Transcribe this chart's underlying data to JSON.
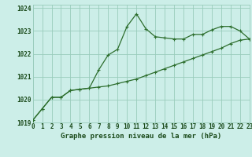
{
  "title": "Graphe pression niveau de la mer (hPa)",
  "background_color": "#cceee8",
  "grid_color": "#99ccbb",
  "line_color": "#2d6e2d",
  "x_min": 0,
  "x_max": 23,
  "y_min": 1019,
  "y_max": 1024,
  "series1_y": [
    1019.1,
    1019.6,
    1020.1,
    1020.1,
    1020.4,
    1020.45,
    1020.5,
    1021.3,
    1021.95,
    1022.2,
    1023.2,
    1023.75,
    1023.1,
    1022.75,
    1022.7,
    1022.65,
    1022.65,
    1022.85,
    1022.85,
    1023.05,
    1023.2,
    1023.2,
    1023.0,
    1022.65
  ],
  "series2_y": [
    1019.1,
    1019.6,
    1020.1,
    1020.1,
    1020.4,
    1020.45,
    1020.5,
    1020.55,
    1020.6,
    1020.7,
    1020.8,
    1020.9,
    1021.05,
    1021.2,
    1021.35,
    1021.5,
    1021.65,
    1021.8,
    1021.95,
    1022.1,
    1022.25,
    1022.45,
    1022.6,
    1022.65
  ],
  "tick_fontsize": 5.5,
  "title_fontsize": 6.5
}
